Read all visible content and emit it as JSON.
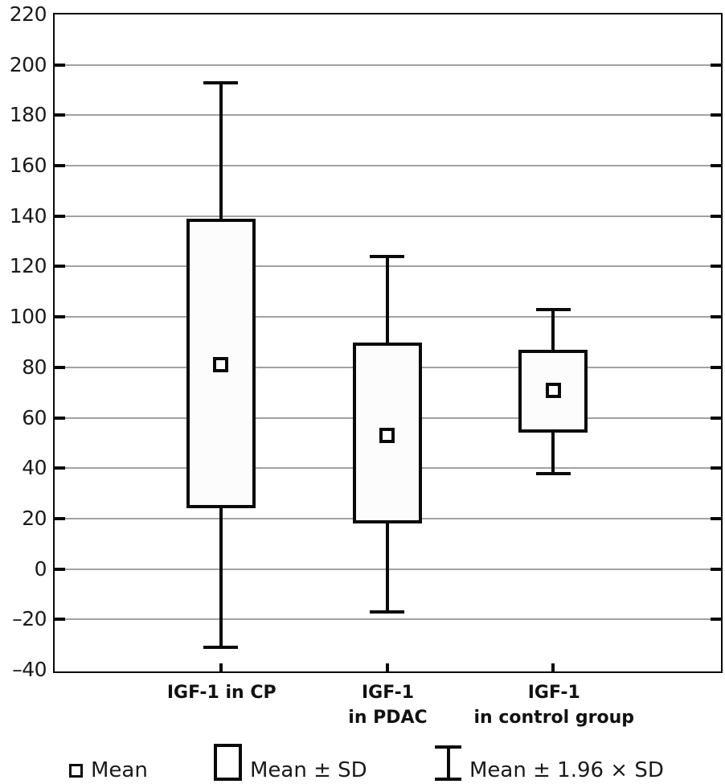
{
  "chart_data": {
    "type": "box",
    "title": "",
    "xlabel": "",
    "ylabel": "",
    "ylim": [
      -40,
      220
    ],
    "ytick_step": 20,
    "ytick_values": [
      220,
      200,
      180,
      160,
      140,
      120,
      100,
      80,
      60,
      40,
      20,
      0,
      -20,
      -40
    ],
    "ytick_labels": [
      "220",
      "200",
      "180",
      "160",
      "140",
      "120",
      "100",
      "80",
      "60",
      "40",
      "20",
      "0",
      "–20",
      "–40"
    ],
    "grid": true,
    "legend_position": "bottom",
    "categories": [
      "IGF-1 in CP",
      "IGF-1 in PDAC",
      "IGF-1 in control group"
    ],
    "category_label_lines": [
      [
        "IGF-1 in CP"
      ],
      [
        "IGF-1",
        "in PDAC"
      ],
      [
        "IGF-1",
        "in control group"
      ]
    ],
    "series": [
      {
        "name": "IGF-1 in CP",
        "mean": 81,
        "box_low": 24,
        "box_high": 139,
        "whisker_low": -31,
        "whisker_high": 193
      },
      {
        "name": "IGF-1 in PDAC",
        "mean": 53,
        "box_low": 18,
        "box_high": 90,
        "whisker_low": -17,
        "whisker_high": 124
      },
      {
        "name": "IGF-1 in control group",
        "mean": 71,
        "box_low": 54,
        "box_high": 87,
        "whisker_low": 38,
        "whisker_high": 103
      }
    ],
    "legend": [
      {
        "symbol": "mean-square",
        "label": "Mean"
      },
      {
        "symbol": "sd-box",
        "label": "Mean ± SD"
      },
      {
        "symbol": "whisker-ibeam",
        "label": "Mean ± 1.96 × SD"
      }
    ],
    "colors": {
      "line": "#0a0a0a",
      "grid": "#a2a2a2",
      "box_fill": "#fcfcfc",
      "marker_fill": "#ffffff",
      "background": "#ffffff",
      "text": "#1a1a1a"
    }
  }
}
